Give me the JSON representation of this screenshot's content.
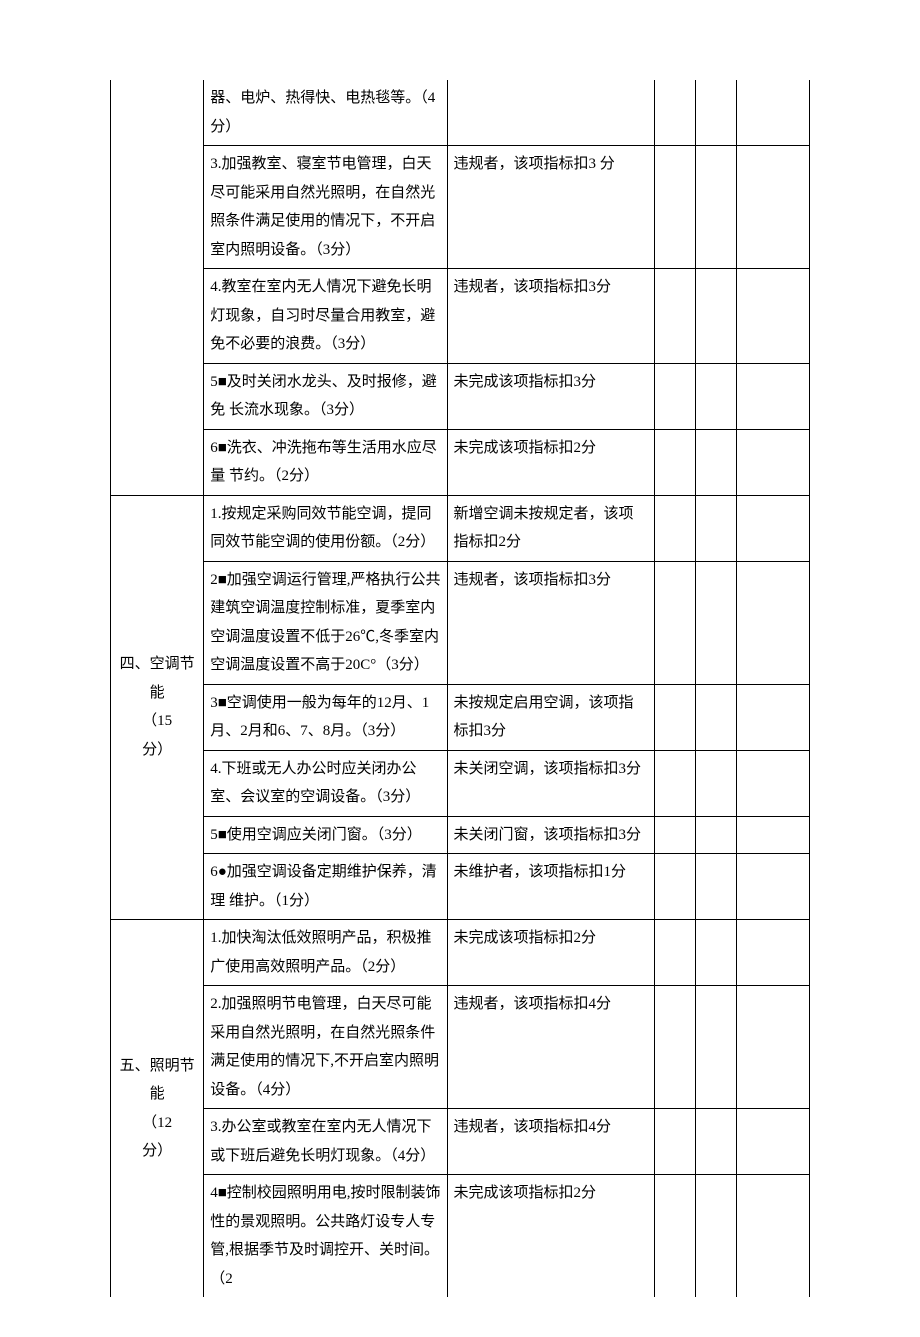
{
  "rows": [
    {
      "cat": "",
      "catRows": 0,
      "item": "器、电炉、热得快、电热毯等。（4分）",
      "std": "",
      "noTop": true
    },
    {
      "item": "3.加强教室、寝室节电管理，白天尽可能采用自然光照明，在自然光照条件满足使用的情况下，不开启室内照明设备。（3分）",
      "std": "违规者，该项指标扣3 分"
    },
    {
      "item": "4.教室在室内无人情况下避免长明灯现象，自习时尽量合用教室，避免不必要的浪费。（3分）",
      "std": "违规者，该项指标扣3分"
    },
    {
      "item": "5■及时关闭水龙头、及时报修，避免 长流水现象。（3分）",
      "std": "未完成该项指标扣3分"
    },
    {
      "item": "6■洗衣、冲洗拖布等生活用水应尽量 节约。（2分）",
      "std": "未完成该项指标扣2分"
    },
    {
      "cat": "四、空调节能\n（15\n分）",
      "catRows": 6,
      "item": "1.按规定采购同效节能空调，提同同效节能空调的使用份额。（2分）",
      "std": "新增空调未按规定者，该项指标扣2分"
    },
    {
      "item": "2■加强空调运行管理,严格执行公共建筑空调温度控制标准，夏季室内空调温度设置不低于26℃,冬季室内空调温度设置不高于20C°（3分）",
      "std": "违规者，该项指标扣3分"
    },
    {
      "item": "3■空调使用一般为每年的12月、1月、2月和6、7、8月。（3分）",
      "std": "未按规定启用空调，该项指标扣3分"
    },
    {
      "item": "4.下班或无人办公时应关闭办公室、会议室的空调设备。（3分）",
      "std": "未关闭空调，该项指标扣3分"
    },
    {
      "item": "5■使用空调应关闭门窗。（3分）",
      "std": "未关闭门窗，该项指标扣3分"
    },
    {
      "item": "6●加强空调设备定期维护保养，清理 维护。（1分）",
      "std": "未维护者，该项指标扣1分"
    },
    {
      "cat": "五、照明节能\n（12\n分）",
      "catRows": 4,
      "item": "1.加快淘汰低效照明产品，积极推广使用高效照明产品。（2分）",
      "std": "未完成该项指标扣2分"
    },
    {
      "item": "2.加强照明节电管理，白天尽可能采用自然光照明，在自然光照条件满足使用的情况下,不开启室内照明设备。（4分）",
      "std": "违规者，该项指标扣4分"
    },
    {
      "item": "3.办公室或教室在室内无人情况下或下班后避免长明灯现象。（4分）",
      "std": "违规者，该项指标扣4分"
    },
    {
      "item": "4■控制校园照明用电,按时限制装饰性的景观照明。公共路灯设专人专管,根据季节及时调控开、关时间。（2",
      "std": "未完成该项指标扣2分",
      "noBottom": true
    }
  ]
}
